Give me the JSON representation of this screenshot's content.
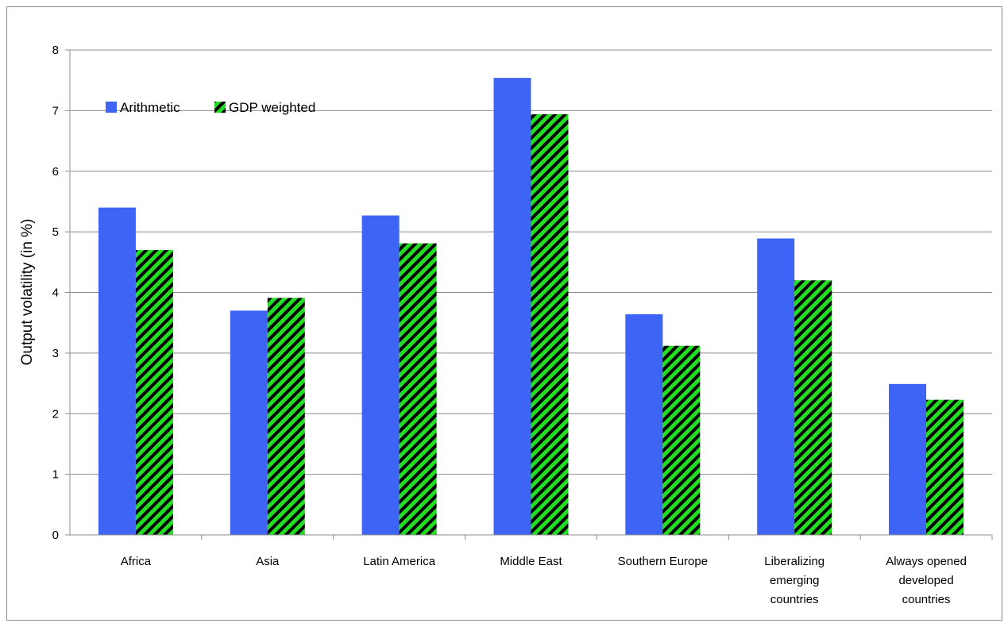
{
  "chart_data": {
    "type": "bar",
    "categories": [
      [
        "Africa"
      ],
      [
        "Asia"
      ],
      [
        "Latin America"
      ],
      [
        "Middle East"
      ],
      [
        "Southern Europe"
      ],
      [
        "Liberalizing",
        "emerging",
        "countries"
      ],
      [
        "Always opened",
        "developed",
        "countries"
      ]
    ],
    "series": [
      {
        "name": "Arithmetic",
        "values": [
          5.4,
          3.7,
          5.27,
          7.54,
          3.64,
          4.89,
          2.49
        ],
        "color": "#3d64f5",
        "pattern": "solid"
      },
      {
        "name": "GDP weighted",
        "values": [
          4.7,
          3.91,
          4.81,
          6.94,
          3.12,
          4.2,
          2.23
        ],
        "color": "#22dd22",
        "pattern": "diagonal-stripes-black"
      }
    ],
    "title": "",
    "xlabel": "",
    "ylabel": "Output volatility (in %)",
    "ylim": [
      0,
      8
    ],
    "yticks": [
      "0",
      "1",
      "2",
      "3",
      "4",
      "5",
      "6",
      "7",
      "8"
    ],
    "grid": true,
    "legend_position": "top-left"
  }
}
